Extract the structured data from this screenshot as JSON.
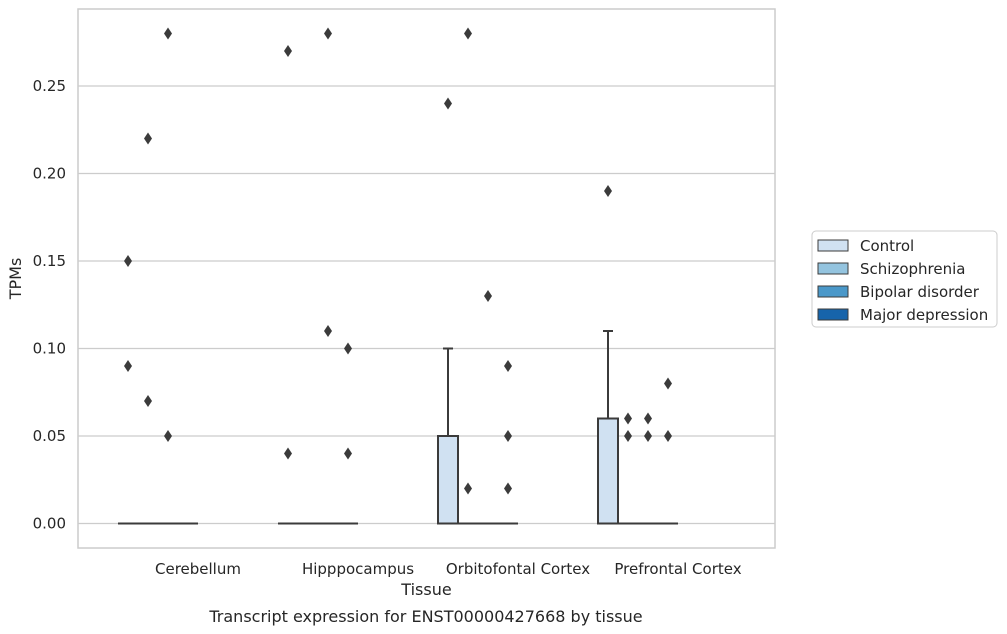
{
  "chart_data": {
    "type": "box",
    "categories": [
      "Cerebellum",
      "Hipppocampus",
      "Orbitofontal Cortex",
      "Prefrontal Cortex"
    ],
    "xlabel": "Tissue",
    "ylabel": "TPMs",
    "caption": "Transcript expression for ENST00000427668 by tissue",
    "ylim": [
      -0.014,
      0.294
    ],
    "yticks": [
      0.0,
      0.05,
      0.1,
      0.15,
      0.2,
      0.25
    ],
    "ytick_labels": [
      "0.00",
      "0.05",
      "0.10",
      "0.15",
      "0.20",
      "0.25"
    ],
    "grid": "horizontal",
    "legend_position": "right",
    "series": [
      {
        "name": "Control",
        "color": "#d0e1f2",
        "boxes": [
          {
            "q1": 0,
            "median": 0,
            "q3": 0,
            "whisker_low": 0,
            "whisker_high": 0,
            "outliers": [
              0.15,
              0.09
            ]
          },
          {
            "q1": 0,
            "median": 0,
            "q3": 0,
            "whisker_low": 0,
            "whisker_high": 0,
            "outliers": [
              0.27,
              0.04
            ]
          },
          {
            "q1": 0,
            "median": 0,
            "q3": 0.05,
            "whisker_low": 0,
            "whisker_high": 0.1,
            "outliers": [
              0.24
            ]
          },
          {
            "q1": 0,
            "median": 0,
            "q3": 0.06,
            "whisker_low": 0,
            "whisker_high": 0.11,
            "outliers": [
              0.19
            ]
          }
        ]
      },
      {
        "name": "Schizophrenia",
        "color": "#94c4df",
        "boxes": [
          {
            "q1": 0,
            "median": 0,
            "q3": 0,
            "whisker_low": 0,
            "whisker_high": 0,
            "outliers": [
              0.22,
              0.07
            ]
          },
          {
            "q1": 0,
            "median": 0,
            "q3": 0,
            "whisker_low": 0,
            "whisker_high": 0,
            "outliers": []
          },
          {
            "q1": 0,
            "median": 0,
            "q3": 0,
            "whisker_low": 0,
            "whisker_high": 0,
            "outliers": [
              0.28,
              0.02
            ]
          },
          {
            "q1": 0,
            "median": 0,
            "q3": 0,
            "whisker_low": 0,
            "whisker_high": 0,
            "outliers": [
              0.06,
              0.05
            ]
          }
        ]
      },
      {
        "name": "Bipolar disorder",
        "color": "#4a98c9",
        "boxes": [
          {
            "q1": 0,
            "median": 0,
            "q3": 0,
            "whisker_low": 0,
            "whisker_high": 0,
            "outliers": [
              0.28,
              0.05
            ]
          },
          {
            "q1": 0,
            "median": 0,
            "q3": 0,
            "whisker_low": 0,
            "whisker_high": 0,
            "outliers": [
              0.28,
              0.11
            ]
          },
          {
            "q1": 0,
            "median": 0,
            "q3": 0,
            "whisker_low": 0,
            "whisker_high": 0,
            "outliers": [
              0.13
            ]
          },
          {
            "q1": 0,
            "median": 0,
            "q3": 0,
            "whisker_low": 0,
            "whisker_high": 0,
            "outliers": [
              0.06,
              0.05
            ]
          }
        ]
      },
      {
        "name": "Major depression",
        "color": "#1764ab",
        "boxes": [
          {
            "q1": 0,
            "median": 0,
            "q3": 0,
            "whisker_low": 0,
            "whisker_high": 0,
            "outliers": []
          },
          {
            "q1": 0,
            "median": 0,
            "q3": 0,
            "whisker_low": 0,
            "whisker_high": 0,
            "outliers": [
              0.1,
              0.04
            ]
          },
          {
            "q1": 0,
            "median": 0,
            "q3": 0,
            "whisker_low": 0,
            "whisker_high": 0,
            "outliers": [
              0.09,
              0.05,
              0.02
            ]
          },
          {
            "q1": 0,
            "median": 0,
            "q3": 0,
            "whisker_low": 0,
            "whisker_high": 0,
            "outliers": [
              0.08,
              0.05
            ]
          }
        ]
      }
    ],
    "colors": {
      "grid": "#cccccc",
      "frame": "#cccccc",
      "box_edge": "#3b3b3b",
      "text": "#262626"
    }
  }
}
